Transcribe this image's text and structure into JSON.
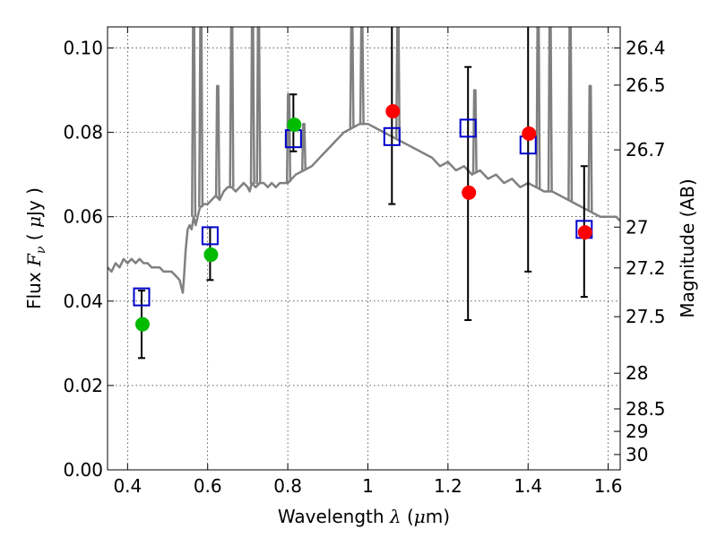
{
  "chart_data": {
    "type": "scatter",
    "xlabel": "Wavelength",
    "xlabel_symbol": "λ",
    "xlabel_unit_open": " (",
    "xlabel_unit_mu": "μ",
    "xlabel_unit_rest": "m)",
    "ylabel": "Flux",
    "ylabel_symbol": "F",
    "ylabel_symbol_sub": "ν",
    "ylabel_unit_open": "( ",
    "ylabel_unit_mu": "μ",
    "ylabel_unit_rest": "Jy )",
    "y2label": "Magnitude (AB)",
    "xlim": [
      0.35,
      1.63
    ],
    "ylim": [
      0.0,
      0.105
    ],
    "grid": true,
    "x_ticks": [
      {
        "value": 0.4,
        "label": "0.4"
      },
      {
        "value": 0.6,
        "label": "0.6"
      },
      {
        "value": 0.8,
        "label": "0.8"
      },
      {
        "value": 1.0,
        "label": "1"
      },
      {
        "value": 1.2,
        "label": "1.2"
      },
      {
        "value": 1.4,
        "label": "1.4"
      },
      {
        "value": 1.6,
        "label": "1.6"
      }
    ],
    "y_ticks": [
      {
        "value": 0.0,
        "label": "0.00"
      },
      {
        "value": 0.02,
        "label": "0.02"
      },
      {
        "value": 0.04,
        "label": "0.04"
      },
      {
        "value": 0.06,
        "label": "0.06"
      },
      {
        "value": 0.08,
        "label": "0.08"
      },
      {
        "value": 0.1,
        "label": "0.10"
      }
    ],
    "y2_ticks": [
      {
        "mag": 26.4,
        "label": "26.4"
      },
      {
        "mag": 26.5,
        "label": "26.5"
      },
      {
        "mag": 26.7,
        "label": "26.7"
      },
      {
        "mag": 27,
        "label": "27"
      },
      {
        "mag": 27.2,
        "label": "27.2"
      },
      {
        "mag": 27.5,
        "label": "27.5"
      },
      {
        "mag": 28,
        "label": "28"
      },
      {
        "mag": 28.5,
        "label": "28.5"
      },
      {
        "mag": 29,
        "label": "29"
      },
      {
        "mag": 30,
        "label": "30"
      }
    ],
    "series": [
      {
        "kind": "model_spectrum",
        "color": "#808080",
        "x": [
          0.35,
          0.36,
          0.37,
          0.38,
          0.39,
          0.4,
          0.41,
          0.42,
          0.43,
          0.44,
          0.45,
          0.46,
          0.47,
          0.48,
          0.49,
          0.5,
          0.51,
          0.52,
          0.53,
          0.535,
          0.538,
          0.541,
          0.545,
          0.55,
          0.555,
          0.56,
          0.565,
          0.57,
          0.58,
          0.59,
          0.6,
          0.61,
          0.62,
          0.63,
          0.64,
          0.65,
          0.66,
          0.67,
          0.68,
          0.69,
          0.7,
          0.705,
          0.71,
          0.72,
          0.73,
          0.74,
          0.75,
          0.76,
          0.77,
          0.78,
          0.8,
          0.82,
          0.84,
          0.86,
          0.88,
          0.9,
          0.92,
          0.94,
          0.96,
          0.98,
          1.0,
          1.02,
          1.04,
          1.06,
          1.08,
          1.1,
          1.12,
          1.14,
          1.16,
          1.18,
          1.2,
          1.22,
          1.24,
          1.26,
          1.28,
          1.3,
          1.32,
          1.34,
          1.36,
          1.38,
          1.4,
          1.42,
          1.44,
          1.46,
          1.48,
          1.5,
          1.52,
          1.54,
          1.56,
          1.58,
          1.6,
          1.62,
          1.63
        ],
        "y": [
          0.048,
          0.047,
          0.049,
          0.048,
          0.05,
          0.049,
          0.05,
          0.049,
          0.05,
          0.049,
          0.049,
          0.048,
          0.048,
          0.048,
          0.047,
          0.047,
          0.047,
          0.046,
          0.045,
          0.043,
          0.042,
          0.046,
          0.052,
          0.057,
          0.058,
          0.057,
          0.06,
          0.058,
          0.062,
          0.063,
          0.063,
          0.064,
          0.065,
          0.064,
          0.066,
          0.067,
          0.067,
          0.066,
          0.067,
          0.068,
          0.067,
          0.066,
          0.068,
          0.067,
          0.068,
          0.068,
          0.067,
          0.068,
          0.067,
          0.068,
          0.068,
          0.07,
          0.071,
          0.072,
          0.074,
          0.076,
          0.078,
          0.08,
          0.081,
          0.082,
          0.082,
          0.081,
          0.08,
          0.079,
          0.078,
          0.077,
          0.076,
          0.075,
          0.074,
          0.072,
          0.073,
          0.071,
          0.072,
          0.07,
          0.071,
          0.069,
          0.07,
          0.068,
          0.069,
          0.067,
          0.068,
          0.067,
          0.066,
          0.066,
          0.065,
          0.064,
          0.063,
          0.062,
          0.061,
          0.06,
          0.06,
          0.06,
          0.059
        ]
      },
      {
        "kind": "emission_lines",
        "color": "#808080",
        "lines": [
          {
            "x": 0.565,
            "peak": 0.105
          },
          {
            "x": 0.583,
            "peak": 0.105
          },
          {
            "x": 0.625,
            "peak": 0.091
          },
          {
            "x": 0.66,
            "peak": 0.105
          },
          {
            "x": 0.712,
            "peak": 0.105
          },
          {
            "x": 0.727,
            "peak": 0.105
          },
          {
            "x": 0.802,
            "peak": 0.089
          },
          {
            "x": 0.84,
            "peak": 0.082
          },
          {
            "x": 0.96,
            "peak": 0.105
          },
          {
            "x": 0.985,
            "peak": 0.105
          },
          {
            "x": 1.075,
            "peak": 0.105
          },
          {
            "x": 1.267,
            "peak": 0.09
          },
          {
            "x": 1.425,
            "peak": 0.105
          },
          {
            "x": 1.455,
            "peak": 0.105
          },
          {
            "x": 1.505,
            "peak": 0.105
          },
          {
            "x": 1.555,
            "peak": 0.091
          }
        ]
      },
      {
        "kind": "model_photometry",
        "marker": "open-square",
        "color": "#0000cc",
        "x": [
          0.435,
          0.606,
          0.814,
          1.06,
          1.25,
          1.4,
          1.54
        ],
        "y": [
          0.041,
          0.0555,
          0.0785,
          0.079,
          0.081,
          0.077,
          0.057
        ]
      },
      {
        "kind": "observed_photometry",
        "marker": "filled-circle",
        "color": "#00bb00",
        "x": [
          0.435,
          0.606,
          0.814
        ],
        "y": [
          0.0345,
          0.051,
          0.0818
        ],
        "yerr_low": [
          0.0265,
          0.045,
          0.0755
        ],
        "yerr_high": [
          0.0425,
          0.0575,
          0.089
        ]
      },
      {
        "kind": "observed_photometry",
        "marker": "filled-circle",
        "color": "#ff0000",
        "x": [
          1.06,
          1.25,
          1.4,
          1.54
        ],
        "y": [
          0.085,
          0.0657,
          0.0797,
          0.0563
        ],
        "yerr_low": [
          0.063,
          0.0355,
          0.047,
          0.041
        ],
        "yerr_high": [
          0.105,
          0.0955,
          0.105,
          0.072
        ]
      }
    ]
  }
}
